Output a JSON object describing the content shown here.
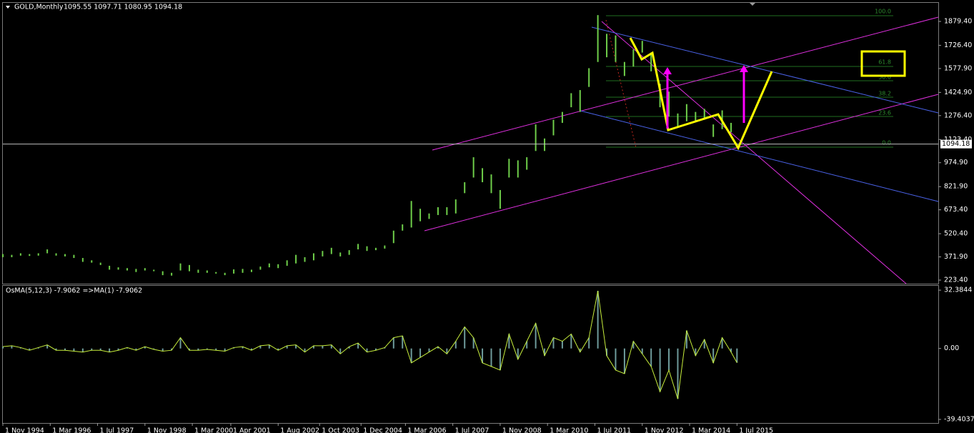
{
  "chart_data": [
    {
      "type": "hilo",
      "title": "GOLD,Monthly",
      "ohlc_label": "1095.55 1097.71 1080.95 1094.18",
      "color": "#6fce4a",
      "x": [
        0,
        3,
        6,
        9,
        12,
        15,
        18,
        21,
        24,
        27,
        30,
        33,
        36,
        39,
        42,
        45,
        48,
        51,
        54,
        57,
        60,
        63,
        66,
        69,
        72,
        75,
        78,
        81,
        84,
        87,
        90,
        93,
        96,
        99,
        102,
        105,
        108,
        111,
        114,
        117,
        120,
        123,
        126,
        129,
        132,
        135,
        138,
        141,
        144,
        147,
        150,
        153,
        156,
        159,
        162,
        165,
        168,
        171,
        174,
        177,
        180,
        183,
        186,
        189,
        192,
        195,
        198,
        201,
        204,
        207,
        210,
        213,
        216,
        219,
        222,
        225,
        228,
        231,
        234,
        237,
        240,
        243,
        246,
        248
      ],
      "low": [
        370,
        370,
        380,
        378,
        380,
        395,
        380,
        375,
        365,
        340,
        335,
        320,
        290,
        290,
        285,
        275,
        285,
        280,
        255,
        252,
        285,
        280,
        270,
        270,
        265,
        255,
        265,
        270,
        275,
        290,
        305,
        300,
        315,
        330,
        340,
        350,
        375,
        390,
        375,
        385,
        420,
        410,
        415,
        425,
        460,
        540,
        560,
        600,
        615,
        640,
        640,
        650,
        780,
        880,
        850,
        780,
        680,
        880,
        880,
        930,
        1050,
        1050,
        1150,
        1230,
        1330,
        1300,
        1460,
        1620,
        1650,
        1620,
        1530,
        1590,
        1680,
        1560,
        1330,
        1270,
        1200,
        1240,
        1240,
        1250,
        1140,
        1190,
        1170,
        1080.95
      ],
      "high": [
        390,
        385,
        395,
        390,
        395,
        420,
        395,
        390,
        385,
        365,
        350,
        335,
        315,
        305,
        300,
        295,
        300,
        290,
        280,
        270,
        330,
        320,
        290,
        285,
        275,
        270,
        292,
        295,
        290,
        310,
        330,
        325,
        350,
        385,
        370,
        395,
        410,
        430,
        400,
        415,
        455,
        440,
        430,
        445,
        540,
        580,
        730,
        680,
        650,
        690,
        690,
        740,
        850,
        1010,
        940,
        900,
        800,
        1000,
        990,
        1010,
        1220,
        1130,
        1250,
        1300,
        1420,
        1440,
        1580,
        1920,
        1800,
        1790,
        1620,
        1700,
        1755,
        1680,
        1480,
        1430,
        1290,
        1350,
        1300,
        1320,
        1220,
        1310,
        1230,
        1097.71
      ],
      "xlim": [
        0,
        316
      ],
      "ylim": [
        200.5,
        1998.3
      ],
      "yticks": [
        {
          "value": 1879.4,
          "label": "1879.40"
        },
        {
          "value": 1726.4,
          "label": "1726.40"
        },
        {
          "value": 1577.9,
          "label": "1577.90"
        },
        {
          "value": 1424.9,
          "label": "1424.90"
        },
        {
          "value": 1276.4,
          "label": "1276.40"
        },
        {
          "value": 1123.4,
          "label": "1123.40"
        },
        {
          "value": 974.9,
          "label": "974.90"
        },
        {
          "value": 821.9,
          "label": "821.90"
        },
        {
          "value": 673.4,
          "label": "673.40"
        },
        {
          "value": 520.4,
          "label": "520.40"
        },
        {
          "value": 371.9,
          "label": "371.90"
        },
        {
          "value": 223.4,
          "label": "223.40"
        }
      ],
      "last_price": 1094.18,
      "fib_labels": [
        "100.0",
        "61.8",
        "50.0",
        "38.2",
        "23.6",
        "0.0"
      ]
    },
    {
      "type": "histogram",
      "title": "OsMA(5,12,3) -7.9062  =>MA(1) -7.9062",
      "bar_color": "#6f9c9c",
      "line_color": "#c8ef3c",
      "x": [
        0,
        3,
        6,
        9,
        12,
        15,
        18,
        21,
        24,
        27,
        30,
        33,
        36,
        39,
        42,
        45,
        48,
        51,
        54,
        57,
        60,
        63,
        66,
        69,
        72,
        75,
        78,
        81,
        84,
        87,
        90,
        93,
        96,
        99,
        102,
        105,
        108,
        111,
        114,
        117,
        120,
        123,
        126,
        129,
        132,
        135,
        138,
        141,
        144,
        147,
        150,
        153,
        156,
        159,
        162,
        165,
        168,
        171,
        174,
        177,
        180,
        183,
        186,
        189,
        192,
        195,
        198,
        201,
        204,
        207,
        210,
        213,
        216,
        219,
        222,
        225,
        228,
        231,
        234,
        237,
        240,
        243,
        246,
        248
      ],
      "values": [
        1,
        1.5,
        0.5,
        -1,
        0.5,
        2,
        -1,
        -1,
        -1.5,
        -2,
        -1,
        -1,
        -2,
        -1,
        0.5,
        -1,
        1,
        -0.5,
        -1.5,
        -1,
        6,
        -1,
        -1,
        -0.5,
        -1,
        -1.5,
        0.5,
        1,
        -1,
        1.5,
        2,
        -1,
        1.5,
        2,
        -2,
        1.5,
        1.5,
        2,
        -3,
        1,
        3,
        -2,
        -1,
        0.5,
        6,
        7,
        -8,
        -5,
        -2,
        1,
        -3,
        4,
        12,
        6,
        -8,
        -10,
        -12,
        8,
        -6,
        4,
        14,
        -4,
        6,
        4,
        8,
        -2,
        6,
        32,
        -4,
        -12,
        -14,
        4,
        -3,
        -10,
        -24,
        -12,
        -28,
        10,
        -4,
        5,
        -8,
        6,
        -2,
        -7.9062
      ],
      "xlim": [
        0,
        316
      ],
      "ylim": [
        -40.6,
        34.8
      ],
      "yticks": [
        32.3844,
        {
          "value": 0,
          "label": "0.00"
        },
        -39.4037
      ],
      "xticks": [
        {
          "value": 0,
          "label": "1 Nov 1994"
        },
        {
          "value": 16,
          "label": "1 Mar 1996"
        },
        {
          "value": 32,
          "label": "1 Jul 1997"
        },
        {
          "value": 48,
          "label": "1 Nov 1998"
        },
        {
          "value": 64,
          "label": "1 Mar 2000"
        },
        {
          "value": 77,
          "label": "1 Apr 2001"
        },
        {
          "value": 93,
          "label": "1 Aug 2002"
        },
        {
          "value": 107,
          "label": "1 Oct 2003"
        },
        {
          "value": 121,
          "label": "1 Dec 2004"
        },
        {
          "value": 136,
          "label": "1 Mar 2006"
        },
        {
          "value": 152,
          "label": "1 Jul 2007"
        },
        {
          "value": 168,
          "label": "1 Nov 2008"
        },
        {
          "value": 184,
          "label": "1 Mar 2010"
        },
        {
          "value": 200,
          "label": "1 Jul 2011"
        },
        {
          "value": 216,
          "label": "1 Nov 2012"
        },
        {
          "value": 232,
          "label": "1 Mar 2014"
        },
        {
          "value": 248,
          "label": "1 Jul 2015"
        }
      ]
    }
  ]
}
